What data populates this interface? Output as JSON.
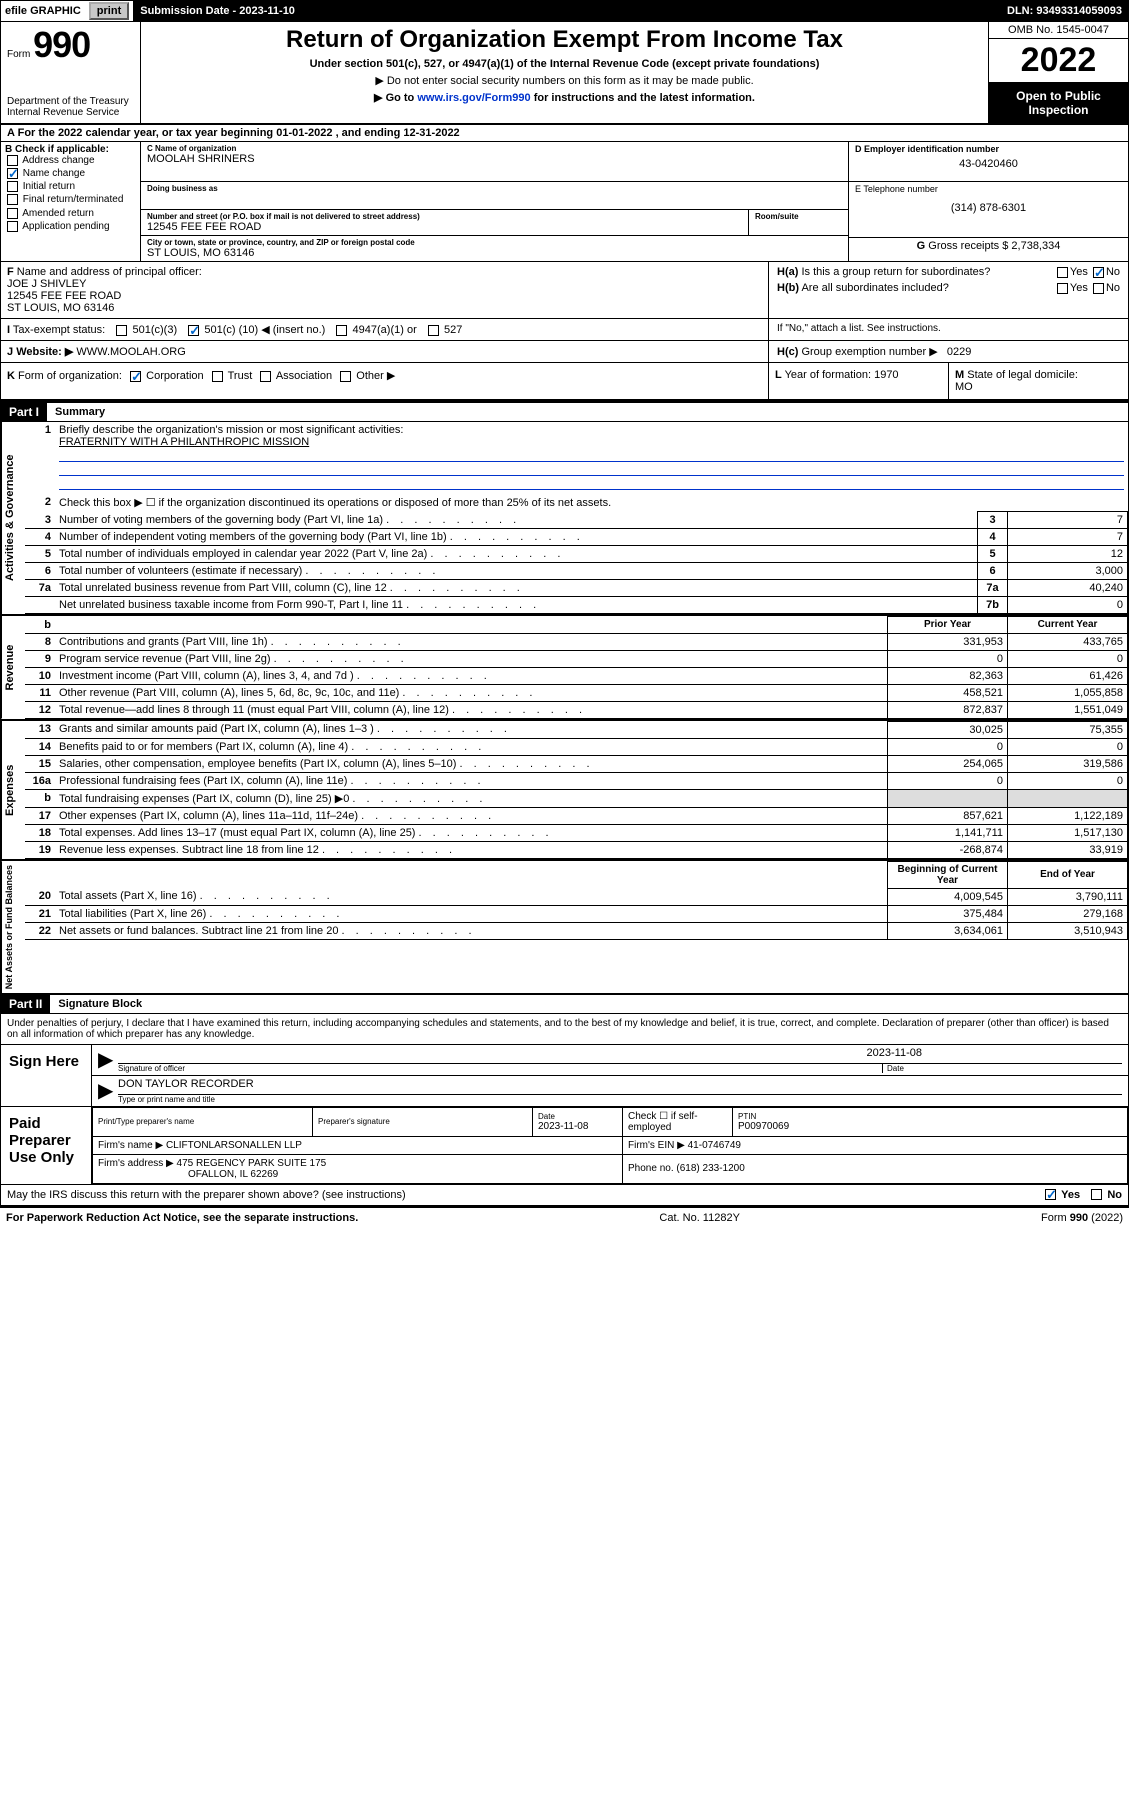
{
  "topbar": {
    "efile_label": "efile GRAPHIC",
    "print_btn": "print",
    "submission_label": "Submission Date - 2023-11-10",
    "dln": "DLN: 93493314059093"
  },
  "header": {
    "form_prefix": "Form",
    "form_number": "990",
    "dept": "Department of the Treasury",
    "irs": "Internal Revenue Service",
    "title": "Return of Organization Exempt From Income Tax",
    "subtitle": "Under section 501(c), 527, or 4947(a)(1) of the Internal Revenue Code (except private foundations)",
    "instr1": "▶ Do not enter social security numbers on this form as it may be made public.",
    "instr2_pre": "▶ Go to ",
    "instr2_link": "www.irs.gov/Form990",
    "instr2_post": " for instructions and the latest information.",
    "omb": "OMB No. 1545-0047",
    "year": "2022",
    "open_public": "Open to Public Inspection"
  },
  "row_a": {
    "label": "A",
    "text_pre": "For the 2022 calendar year, or tax year beginning ",
    "begin": "01-01-2022",
    "text_mid": " , and ending ",
    "end": "12-31-2022"
  },
  "col_b": {
    "header": "B Check if applicable:",
    "items": [
      {
        "label": "Address change",
        "checked": false
      },
      {
        "label": "Name change",
        "checked": true
      },
      {
        "label": "Initial return",
        "checked": false
      },
      {
        "label": "Final return/terminated",
        "checked": false
      },
      {
        "label": "Amended return",
        "checked": false
      },
      {
        "label": "Application pending",
        "checked": false
      }
    ]
  },
  "col_c": {
    "name_label": "C Name of organization",
    "name": "MOOLAH SHRINERS",
    "dba_label": "Doing business as",
    "dba": "",
    "addr_label": "Number and street (or P.O. box if mail is not delivered to street address)",
    "room_label": "Room/suite",
    "addr": "12545 FEE FEE ROAD",
    "city_label": "City or town, state or province, country, and ZIP or foreign postal code",
    "city": "ST LOUIS, MO  63146"
  },
  "col_d": {
    "label": "D Employer identification number",
    "ein": "43-0420460"
  },
  "col_e": {
    "label": "E Telephone number",
    "phone": "(314) 878-6301"
  },
  "col_g": {
    "label": "G",
    "text": "Gross receipts $ 2,738,334"
  },
  "row_f": {
    "label": "F",
    "text": "Name and address of principal officer:",
    "name": "JOE J SHIVLEY",
    "addr1": "12545 FEE FEE ROAD",
    "addr2": "ST LOUIS, MO  63146"
  },
  "row_h": {
    "ha_label": "H(a)",
    "ha_text": "Is this a group return for subordinates?",
    "ha_yes": "Yes",
    "ha_no": "No",
    "hb_label": "H(b)",
    "hb_text": "Are all subordinates included?",
    "hb_note": "If \"No,\" attach a list. See instructions.",
    "hc_label": "H(c)",
    "hc_text": "Group exemption number ▶",
    "hc_val": "0229"
  },
  "row_i": {
    "label": "I",
    "text": "Tax-exempt status:",
    "opt1": "501(c)(3)",
    "opt2_pre": "501(c) (",
    "opt2_num": "10",
    "opt2_post": ") ◀ (insert no.)",
    "opt3": "4947(a)(1) or",
    "opt4": "527"
  },
  "row_j": {
    "label": "J",
    "text": "Website: ▶",
    "url": "WWW.MOOLAH.ORG"
  },
  "row_k": {
    "label": "K",
    "text": "Form of organization:",
    "opts": [
      "Corporation",
      "Trust",
      "Association",
      "Other ▶"
    ]
  },
  "row_l": {
    "label": "L",
    "text": "Year of formation:",
    "val": "1970"
  },
  "row_m": {
    "label": "M",
    "text": "State of legal domicile:",
    "val": "MO"
  },
  "part1": {
    "header": "Part I",
    "title": "Summary"
  },
  "summary": {
    "line1_label": "1",
    "line1_text": "Briefly describe the organization's mission or most significant activities:",
    "line1_val": "FRATERNITY WITH A PHILANTHROPIC MISSION",
    "line2_label": "2",
    "line2_text": "Check this box ▶ ☐ if the organization discontinued its operations or disposed of more than 25% of its net assets.",
    "sections": {
      "gov": "Activities & Governance",
      "rev": "Revenue",
      "exp": "Expenses",
      "net": "Net Assets or Fund Balances"
    },
    "col_headers": {
      "prior": "Prior Year",
      "current": "Current Year",
      "begin": "Beginning of Current Year",
      "end": "End of Year"
    },
    "rows_gov": [
      {
        "n": "3",
        "desc": "Number of voting members of the governing body (Part VI, line 1a)",
        "box": "3",
        "val": "7"
      },
      {
        "n": "4",
        "desc": "Number of independent voting members of the governing body (Part VI, line 1b)",
        "box": "4",
        "val": "7"
      },
      {
        "n": "5",
        "desc": "Total number of individuals employed in calendar year 2022 (Part V, line 2a)",
        "box": "5",
        "val": "12"
      },
      {
        "n": "6",
        "desc": "Total number of volunteers (estimate if necessary)",
        "box": "6",
        "val": "3,000"
      },
      {
        "n": "7a",
        "desc": "Total unrelated business revenue from Part VIII, column (C), line 12",
        "box": "7a",
        "val": "40,240"
      },
      {
        "n": "",
        "desc": "Net unrelated business taxable income from Form 990-T, Part I, line 11",
        "box": "7b",
        "val": "0"
      }
    ],
    "b_row": {
      "n": "b"
    },
    "rows_rev": [
      {
        "n": "8",
        "desc": "Contributions and grants (Part VIII, line 1h)",
        "prior": "331,953",
        "cur": "433,765"
      },
      {
        "n": "9",
        "desc": "Program service revenue (Part VIII, line 2g)",
        "prior": "0",
        "cur": "0"
      },
      {
        "n": "10",
        "desc": "Investment income (Part VIII, column (A), lines 3, 4, and 7d )",
        "prior": "82,363",
        "cur": "61,426"
      },
      {
        "n": "11",
        "desc": "Other revenue (Part VIII, column (A), lines 5, 6d, 8c, 9c, 10c, and 11e)",
        "prior": "458,521",
        "cur": "1,055,858"
      },
      {
        "n": "12",
        "desc": "Total revenue—add lines 8 through 11 (must equal Part VIII, column (A), line 12)",
        "prior": "872,837",
        "cur": "1,551,049"
      }
    ],
    "rows_exp": [
      {
        "n": "13",
        "desc": "Grants and similar amounts paid (Part IX, column (A), lines 1–3 )",
        "prior": "30,025",
        "cur": "75,355"
      },
      {
        "n": "14",
        "desc": "Benefits paid to or for members (Part IX, column (A), line 4)",
        "prior": "0",
        "cur": "0"
      },
      {
        "n": "15",
        "desc": "Salaries, other compensation, employee benefits (Part IX, column (A), lines 5–10)",
        "prior": "254,065",
        "cur": "319,586"
      },
      {
        "n": "16a",
        "desc": "Professional fundraising fees (Part IX, column (A), line 11e)",
        "prior": "0",
        "cur": "0"
      },
      {
        "n": "b",
        "desc": "Total fundraising expenses (Part IX, column (D), line 25) ▶0",
        "prior": "",
        "cur": "",
        "gray": true
      },
      {
        "n": "17",
        "desc": "Other expenses (Part IX, column (A), lines 11a–11d, 11f–24e)",
        "prior": "857,621",
        "cur": "1,122,189"
      },
      {
        "n": "18",
        "desc": "Total expenses. Add lines 13–17 (must equal Part IX, column (A), line 25)",
        "prior": "1,141,711",
        "cur": "1,517,130"
      },
      {
        "n": "19",
        "desc": "Revenue less expenses. Subtract line 18 from line 12",
        "prior": "-268,874",
        "cur": "33,919"
      }
    ],
    "rows_net": [
      {
        "n": "20",
        "desc": "Total assets (Part X, line 16)",
        "prior": "4,009,545",
        "cur": "3,790,111"
      },
      {
        "n": "21",
        "desc": "Total liabilities (Part X, line 26)",
        "prior": "375,484",
        "cur": "279,168"
      },
      {
        "n": "22",
        "desc": "Net assets or fund balances. Subtract line 21 from line 20",
        "prior": "3,634,061",
        "cur": "3,510,943"
      }
    ]
  },
  "part2": {
    "header": "Part II",
    "title": "Signature Block",
    "declaration": "Under penalties of perjury, I declare that I have examined this return, including accompanying schedules and statements, and to the best of my knowledge and belief, it is true, correct, and complete. Declaration of preparer (other than officer) is based on all information of which preparer has any knowledge."
  },
  "sign_here": {
    "label": "Sign Here",
    "sig_label": "Signature of officer",
    "date_label": "Date",
    "date_val": "2023-11-08",
    "name_label": "Type or print name and title",
    "name_val": "DON TAYLOR  RECORDER"
  },
  "paid_preparer": {
    "label": "Paid Preparer Use Only",
    "print_name_header": "Print/Type preparer's name",
    "sig_header": "Preparer's signature",
    "date_header": "Date",
    "date_val": "2023-11-08",
    "check_label": "Check ☐ if self-employed",
    "ptin_header": "PTIN",
    "ptin_val": "P00970069",
    "firm_name_label": "Firm's name    ▶",
    "firm_name": "CLIFTONLARSONALLEN LLP",
    "firm_ein_label": "Firm's EIN ▶",
    "firm_ein": "41-0746749",
    "firm_addr_label": "Firm's address ▶",
    "firm_addr1": "475 REGENCY PARK SUITE 175",
    "firm_addr2": "OFALLON, IL  62269",
    "phone_label": "Phone no.",
    "phone": "(618) 233-1200"
  },
  "may_irs": {
    "text": "May the IRS discuss this return with the preparer shown above? (see instructions)",
    "yes": "Yes",
    "no": "No"
  },
  "footer": {
    "left": "For Paperwork Reduction Act Notice, see the separate instructions.",
    "center": "Cat. No. 11282Y",
    "right_pre": "Form ",
    "right_form": "990",
    "right_post": " (2022)"
  }
}
